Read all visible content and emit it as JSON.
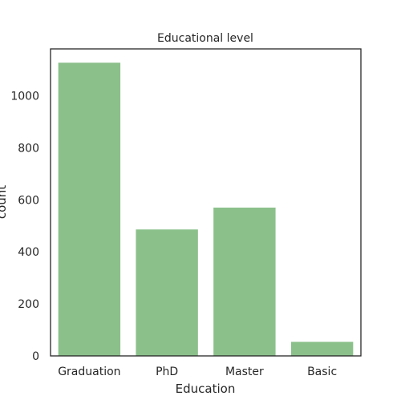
{
  "chart_data": {
    "type": "bar",
    "title": "Educational level",
    "xlabel": "Education",
    "ylabel": "count",
    "categories": [
      "Graduation",
      "PhD",
      "Master",
      "Basic"
    ],
    "values": [
      1127,
      486,
      570,
      54
    ],
    "ylim": [
      0,
      1180
    ],
    "yticks": [
      0,
      200,
      400,
      600,
      800,
      1000
    ],
    "ytick_labels": [
      "0",
      "200",
      "400",
      "600",
      "800",
      "1000"
    ],
    "grid": false,
    "legend": "none",
    "bar_color": "#8bc08b",
    "frame_color": "#262626"
  }
}
